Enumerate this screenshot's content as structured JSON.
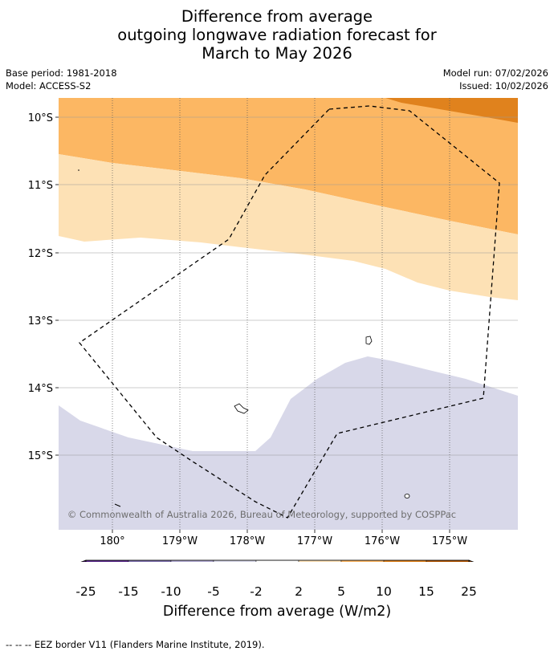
{
  "title": {
    "line1": "Difference from average",
    "line2": "outgoing longwave radiation forecast for",
    "line3": "March to May 2026"
  },
  "meta": {
    "base_period": "Base period: 1981-2018",
    "model": "Model: ACCESS-S2",
    "model_run": "Model run: 07/02/2026",
    "issued": "Issued: 10/02/2026"
  },
  "map": {
    "lat_labels": [
      "10°S",
      "11°S",
      "12°S",
      "13°S",
      "14°S",
      "15°S"
    ],
    "lon_labels": [
      "180°",
      "179°W",
      "178°W",
      "177°W",
      "176°W",
      "175°W"
    ],
    "copyright": "© Commonwealth of Australia 2026, Bureau of Meteorology, supported by COSPPac",
    "colors": {
      "c_neg5_neg2": "#d8d8e9",
      "c_2_5": "#fde1b5",
      "c_5_10": "#fcb763",
      "c_10_15": "#e0821d",
      "grid": "#999999"
    }
  },
  "colorbar": {
    "tick_labels": [
      "-25",
      "-15",
      "-10",
      "-5",
      "-2",
      "2",
      "5",
      "10",
      "15",
      "25"
    ],
    "colors": [
      "#3f0f5e",
      "#5a2a8a",
      "#7f71ad",
      "#b2abd2",
      "#d8d8e9",
      "#ffffff",
      "#fde1b5",
      "#fcb763",
      "#e0821d",
      "#b35806",
      "#7f3b08"
    ],
    "title": "Difference from average (W/m2)"
  },
  "footer": "--  --  -- EEZ border V11 (Flanders Marine Institute, 2019)."
}
